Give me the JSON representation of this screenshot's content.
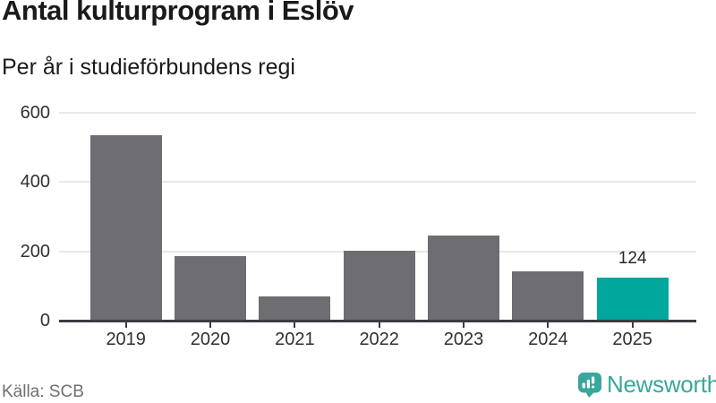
{
  "page": {
    "source": "Källa: SCB",
    "brand": "Newsworthy"
  },
  "icons": {
    "brand": "newsworthy-speech-bubble-bar-chart-icon"
  },
  "colors": {
    "title_text": "#1a1a1a",
    "tick_text": "#2f2f34",
    "label_text": "#26262b",
    "source_text": "#6f6f6f",
    "grid": "#e8e8e8",
    "axis": "#3c3c41",
    "brand_teal": "#3aa79c"
  },
  "chart_data": {
    "type": "bar",
    "title": "Antal kulturprogram i Eslöv",
    "subtitle": "Per år i studieförbundens regi",
    "categories": [
      "2019",
      "2020",
      "2021",
      "2022",
      "2023",
      "2024",
      "2025"
    ],
    "values": [
      535,
      185,
      71,
      203,
      246,
      143,
      124
    ],
    "xlabel": "",
    "ylabel": "",
    "ylim": [
      0,
      600
    ],
    "yticks": [
      0,
      200,
      400,
      600
    ],
    "grid": true,
    "legend": false,
    "bar_color": "#6d6d72",
    "highlight_index": 6,
    "highlight_color": "#00a79d",
    "data_labels": [
      {
        "index": 6,
        "text": "124"
      }
    ]
  }
}
